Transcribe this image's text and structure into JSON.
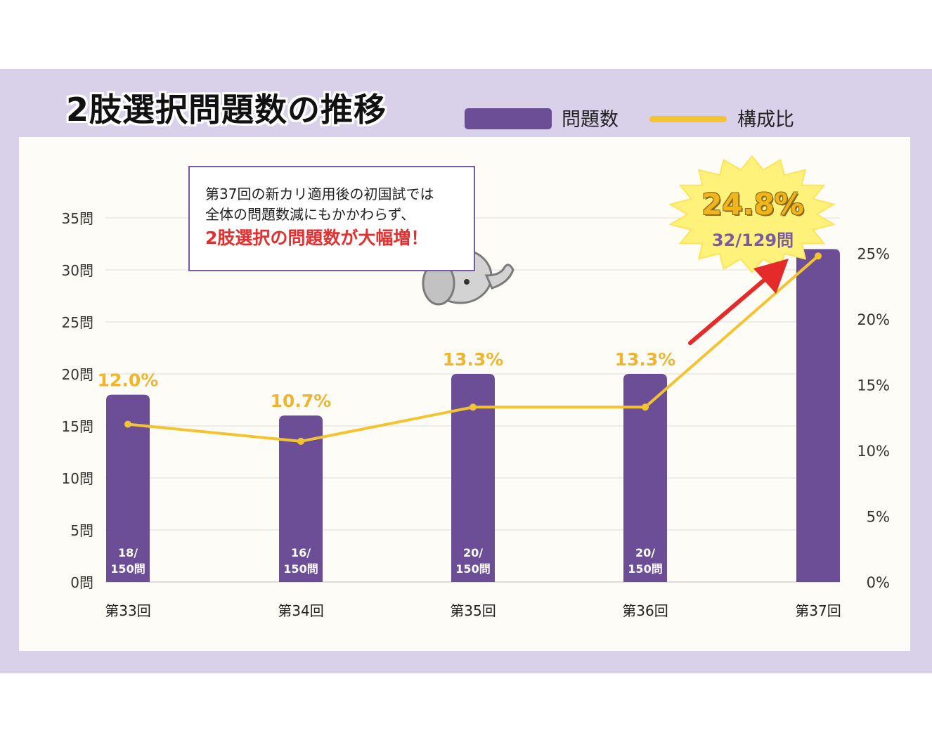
{
  "title": "2肢選択問題数の推移",
  "legend": {
    "bar_label": "問題数",
    "line_label": "構成比"
  },
  "colors": {
    "background_band": "#d9d0ea",
    "panel": "#fdfcf6",
    "bar": "#6b4e95",
    "line": "#f4c430",
    "pct_label": "#f0b52e",
    "emphasis": "#e23030",
    "arrow": "#e52a2a"
  },
  "note": {
    "line1": "第37回の新カリ適用後の初国試では",
    "line2": "全体の問題数減にもかかわらず、",
    "emphasis": "2肢選択の問題数が大幅増！"
  },
  "callout": {
    "percent": "24.8%",
    "fraction": "32/129問"
  },
  "chart_data": {
    "type": "bar",
    "categories": [
      "第33回",
      "第34回",
      "第35回",
      "第36回",
      "第37回"
    ],
    "series": [
      {
        "name": "問題数",
        "type": "bar",
        "axis": "left",
        "values": [
          18,
          16,
          20,
          20,
          32
        ]
      },
      {
        "name": "構成比",
        "type": "line",
        "axis": "right",
        "values": [
          12.0,
          10.7,
          13.3,
          13.3,
          24.8
        ]
      }
    ],
    "bar_labels": [
      [
        "18/",
        "150問"
      ],
      [
        "16/",
        "150問"
      ],
      [
        "20/",
        "150問"
      ],
      [
        "20/",
        "150問"
      ],
      [
        "",
        ""
      ]
    ],
    "line_labels": [
      "12.0%",
      "10.7%",
      "13.3%",
      "13.3%",
      ""
    ],
    "y_left": {
      "ticks": [
        "0問",
        "5問",
        "10問",
        "15問",
        "20問",
        "25問",
        "30問",
        "35問"
      ],
      "range": [
        0,
        35
      ]
    },
    "y_right": {
      "ticks": [
        "0%",
        "5%",
        "10%",
        "15%",
        "20%",
        "25%"
      ],
      "range": [
        0,
        27.7
      ]
    },
    "grid": true,
    "legend_position": "top-right"
  }
}
